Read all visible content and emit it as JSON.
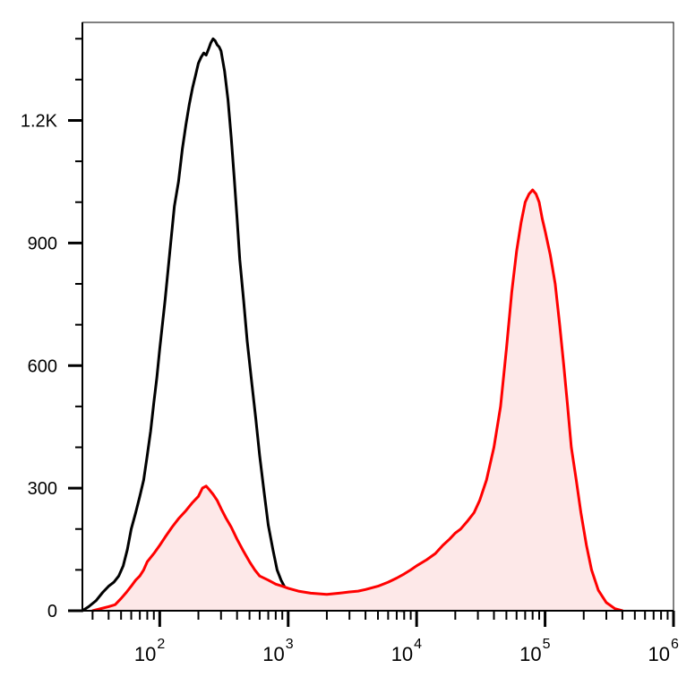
{
  "chart_data": {
    "type": "area",
    "title": "",
    "xlabel": "",
    "ylabel": "",
    "x_scale": "log",
    "xlim": [
      25,
      1000000
    ],
    "ylim": [
      0,
      1440
    ],
    "x_ticks": [
      {
        "value": 100,
        "base": "10",
        "exp": "2"
      },
      {
        "value": 1000,
        "base": "10",
        "exp": "3"
      },
      {
        "value": 10000,
        "base": "10",
        "exp": "4"
      },
      {
        "value": 100000,
        "base": "10",
        "exp": "5"
      },
      {
        "value": 1000000,
        "base": "10",
        "exp": "6"
      }
    ],
    "y_ticks": [
      {
        "value": 0,
        "label": "0"
      },
      {
        "value": 300,
        "label": "300"
      },
      {
        "value": 600,
        "label": "600"
      },
      {
        "value": 900,
        "label": "900"
      },
      {
        "value": 1200,
        "label": "1.2K"
      }
    ],
    "grid": false,
    "legend": "none",
    "series": [
      {
        "color": "#000000",
        "fill": "none",
        "points": [
          [
            25,
            0
          ],
          [
            28,
            10
          ],
          [
            32,
            25
          ],
          [
            36,
            45
          ],
          [
            40,
            60
          ],
          [
            44,
            70
          ],
          [
            48,
            85
          ],
          [
            52,
            110
          ],
          [
            56,
            150
          ],
          [
            60,
            200
          ],
          [
            65,
            240
          ],
          [
            70,
            280
          ],
          [
            75,
            320
          ],
          [
            80,
            380
          ],
          [
            85,
            440
          ],
          [
            90,
            510
          ],
          [
            95,
            570
          ],
          [
            100,
            640
          ],
          [
            110,
            760
          ],
          [
            120,
            880
          ],
          [
            130,
            990
          ],
          [
            140,
            1050
          ],
          [
            150,
            1130
          ],
          [
            160,
            1190
          ],
          [
            170,
            1240
          ],
          [
            180,
            1280
          ],
          [
            190,
            1310
          ],
          [
            200,
            1340
          ],
          [
            210,
            1355
          ],
          [
            220,
            1365
          ],
          [
            230,
            1360
          ],
          [
            240,
            1375
          ],
          [
            250,
            1390
          ],
          [
            260,
            1400
          ],
          [
            270,
            1395
          ],
          [
            280,
            1385
          ],
          [
            290,
            1380
          ],
          [
            300,
            1370
          ],
          [
            320,
            1320
          ],
          [
            340,
            1250
          ],
          [
            360,
            1160
          ],
          [
            380,
            1060
          ],
          [
            400,
            960
          ],
          [
            420,
            860
          ],
          [
            450,
            760
          ],
          [
            480,
            660
          ],
          [
            520,
            560
          ],
          [
            560,
            470
          ],
          [
            600,
            380
          ],
          [
            650,
            290
          ],
          [
            700,
            210
          ],
          [
            760,
            150
          ],
          [
            820,
            100
          ],
          [
            880,
            75
          ],
          [
            950,
            55
          ],
          [
            1050,
            50
          ],
          [
            1200,
            40
          ],
          [
            1400,
            28
          ],
          [
            1700,
            20
          ],
          [
            2000,
            15
          ],
          [
            2500,
            12
          ],
          [
            3000,
            8
          ],
          [
            3500,
            6
          ],
          [
            4500,
            4
          ],
          [
            6000,
            2
          ],
          [
            8000,
            0
          ]
        ]
      },
      {
        "color": "#ff0000",
        "fill": "#fde8e8",
        "points": [
          [
            30,
            0
          ],
          [
            40,
            10
          ],
          [
            45,
            15
          ],
          [
            50,
            30
          ],
          [
            55,
            45
          ],
          [
            60,
            60
          ],
          [
            65,
            75
          ],
          [
            70,
            85
          ],
          [
            75,
            100
          ],
          [
            80,
            120
          ],
          [
            90,
            140
          ],
          [
            100,
            160
          ],
          [
            110,
            180
          ],
          [
            125,
            205
          ],
          [
            140,
            225
          ],
          [
            160,
            245
          ],
          [
            180,
            265
          ],
          [
            200,
            280
          ],
          [
            215,
            300
          ],
          [
            230,
            305
          ],
          [
            245,
            295
          ],
          [
            260,
            285
          ],
          [
            280,
            270
          ],
          [
            300,
            250
          ],
          [
            330,
            225
          ],
          [
            360,
            205
          ],
          [
            400,
            175
          ],
          [
            450,
            145
          ],
          [
            500,
            120
          ],
          [
            550,
            100
          ],
          [
            600,
            85
          ],
          [
            700,
            75
          ],
          [
            800,
            65
          ],
          [
            900,
            60
          ],
          [
            1000,
            55
          ],
          [
            1200,
            48
          ],
          [
            1500,
            43
          ],
          [
            2000,
            40
          ],
          [
            2500,
            43
          ],
          [
            3000,
            46
          ],
          [
            3500,
            48
          ],
          [
            4000,
            52
          ],
          [
            5000,
            60
          ],
          [
            6000,
            70
          ],
          [
            7000,
            80
          ],
          [
            8000,
            90
          ],
          [
            9000,
            100
          ],
          [
            10000,
            110
          ],
          [
            12000,
            125
          ],
          [
            14000,
            140
          ],
          [
            16000,
            160
          ],
          [
            18000,
            175
          ],
          [
            20000,
            190
          ],
          [
            22000,
            200
          ],
          [
            25000,
            220
          ],
          [
            28000,
            240
          ],
          [
            31000,
            270
          ],
          [
            35000,
            320
          ],
          [
            40000,
            400
          ],
          [
            45000,
            500
          ],
          [
            50000,
            640
          ],
          [
            55000,
            780
          ],
          [
            60000,
            880
          ],
          [
            65000,
            950
          ],
          [
            70000,
            1000
          ],
          [
            75000,
            1020
          ],
          [
            80000,
            1030
          ],
          [
            85000,
            1020
          ],
          [
            90000,
            1000
          ],
          [
            95000,
            960
          ],
          [
            100000,
            930
          ],
          [
            110000,
            870
          ],
          [
            120000,
            800
          ],
          [
            130000,
            700
          ],
          [
            140000,
            600
          ],
          [
            150000,
            500
          ],
          [
            160000,
            400
          ],
          [
            175000,
            320
          ],
          [
            190000,
            240
          ],
          [
            210000,
            160
          ],
          [
            230000,
            100
          ],
          [
            260000,
            50
          ],
          [
            300000,
            20
          ],
          [
            350000,
            5
          ],
          [
            400000,
            0
          ]
        ]
      }
    ]
  }
}
